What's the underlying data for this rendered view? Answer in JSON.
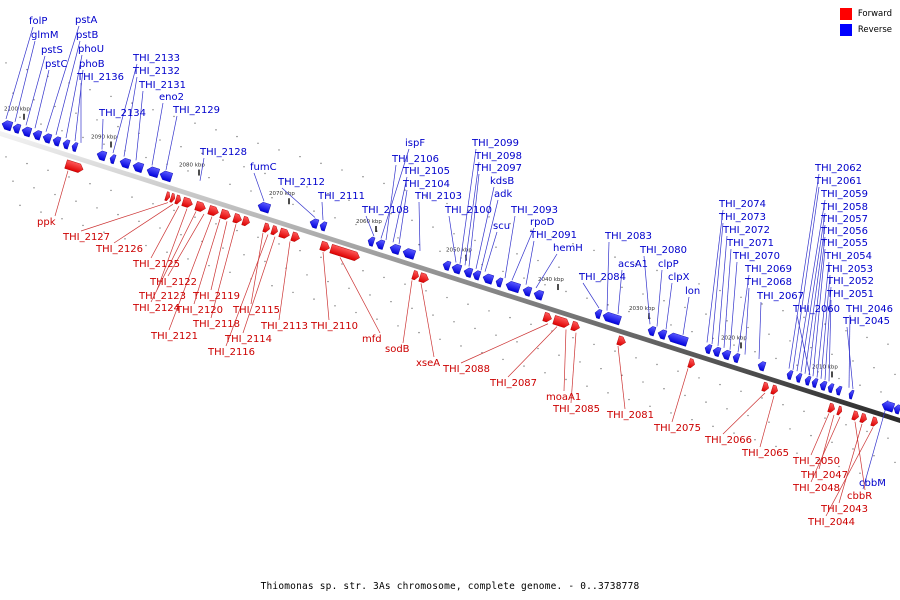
{
  "caption": "Thiomonas sp. str. 3As chromosome, complete genome. - 0..3738778",
  "legend": {
    "forward_label": "Forward",
    "reverse_label": "Reverse",
    "forward_color": "#ff0000",
    "reverse_color": "#0000ff"
  },
  "colors": {
    "forward": "#ee0000",
    "reverse": "#0000ee",
    "forward_text": "#cc0000",
    "reverse_text": "#0000cc",
    "axis": "#888888"
  },
  "axis": {
    "ticks": [
      "2100 kbp",
      "2090 kbp",
      "2080 kbp",
      "2070 kbp",
      "2060 kbp",
      "2050 kbp",
      "2040 kbp",
      "2030 kbp",
      "2020 kbp",
      "2010 kbp"
    ]
  },
  "reverse_genes": [
    "folP",
    "glmM",
    "pstS",
    "pstC",
    "pstA",
    "pstB",
    "phoU",
    "phoB",
    "THI_2136",
    "THI_2134",
    "THI_2133",
    "THI_2132",
    "THI_2131",
    "eno2",
    "THI_2129",
    "THI_2128",
    "fumC",
    "THI_2112",
    "THI_2111",
    "THI_2108",
    "ispF",
    "THI_2106",
    "THI_2105",
    "THI_2104",
    "THI_2103",
    "THI_2100",
    "THI_2099",
    "THI_2098",
    "THI_2097",
    "kdsB",
    "adk",
    "scu",
    "THI_2093",
    "rpoD",
    "THI_2091",
    "hemH",
    "THI_2084",
    "THI_2083",
    "acsA1",
    "THI_2080",
    "clpP",
    "clpX",
    "lon",
    "THI_2074",
    "THI_2073",
    "THI_2072",
    "THI_2071",
    "THI_2070",
    "THI_2069",
    "THI_2068",
    "THI_2067",
    "THI_2062",
    "THI_2061",
    "THI_2059",
    "THI_2058",
    "THI_2057",
    "THI_2056",
    "THI_2055",
    "THI_2054",
    "THI_2053",
    "THI_2052",
    "THI_2051",
    "THI_2060",
    "THI_2046",
    "THI_2045",
    "cbbM"
  ],
  "forward_genes": [
    "ppk",
    "THI_2127",
    "THI_2126",
    "THI_2125",
    "THI_2123",
    "THI_2124",
    "THI_2122",
    "THI_2121",
    "THI_2120",
    "THI_2119",
    "THI_2118",
    "THI_2115",
    "THI_2116",
    "THI_2114",
    "THI_2113",
    "THI_2110",
    "mfd",
    "sodB",
    "xseA",
    "THI_2088",
    "THI_2087",
    "moaA1",
    "THI_2085",
    "THI_2081",
    "THI_2075",
    "THI_2066",
    "THI_2065",
    "THI_2050",
    "THI_2047",
    "THI_2048",
    "cbbR",
    "THI_2043",
    "THI_2044"
  ]
}
